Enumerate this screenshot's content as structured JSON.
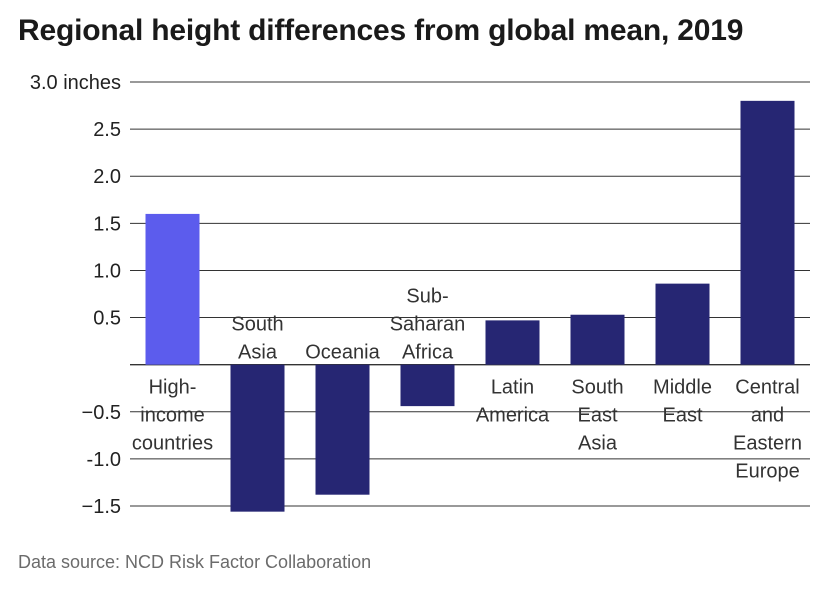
{
  "chart_data": {
    "type": "bar",
    "title": "Regional height differences from global mean, 2019",
    "source": "Data source: NCD Risk Factor Collaboration",
    "unit": "inches",
    "ylim": [
      -1.5,
      3.0
    ],
    "yticks": [
      {
        "value": 3.0,
        "label": "3.0 inches"
      },
      {
        "value": 2.5,
        "label": "2.5"
      },
      {
        "value": 2.0,
        "label": "2.0"
      },
      {
        "value": 1.5,
        "label": "1.5"
      },
      {
        "value": 1.0,
        "label": "1.0"
      },
      {
        "value": 0.5,
        "label": "0.5"
      },
      {
        "value": -0.5,
        "label": "−0.5"
      },
      {
        "value": -1.0,
        "label": "-1.0"
      },
      {
        "value": -1.5,
        "label": "−1.5"
      }
    ],
    "categories": [
      "High-\nincome\ncountries",
      "South\nAsia",
      "Oceania",
      "Sub-\nSaharan\nAfrica",
      "Latin\nAmerica",
      "South\nEast\nAsia",
      "Middle\nEast",
      "Central\nand\nEastern\nEurope"
    ],
    "values": [
      1.6,
      -1.56,
      -1.38,
      -0.44,
      0.47,
      0.53,
      0.86,
      2.8
    ],
    "colors": {
      "highlight": "#5c5ced",
      "default": "#262673",
      "grid": "#333333"
    },
    "grid": true
  }
}
